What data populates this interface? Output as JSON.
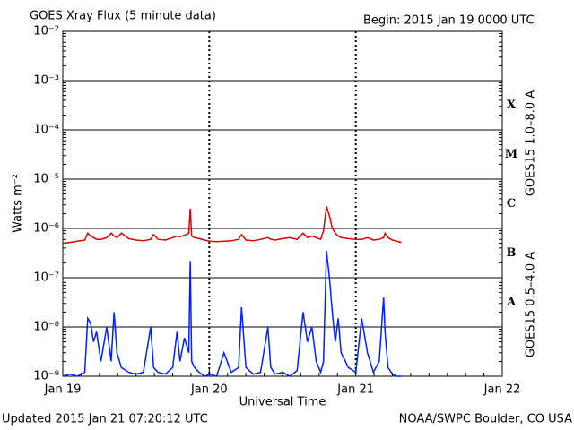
{
  "chart_data": {
    "type": "line",
    "title": "GOES Xray Flux (5 minute data)",
    "subtitle": "Begin:  2015 Jan 19 0000 UTC",
    "ylabel": "Watts m⁻²",
    "xlabel": "Universal Time",
    "footer_left": "Updated 2015 Jan 21 07:20:12 UTC",
    "footer_right": "NOAA/SWPC Boulder, CO USA",
    "log_y": true,
    "grid": true,
    "classes": [
      "A",
      "B",
      "C",
      "M",
      "X"
    ],
    "xlim": [
      0,
      3
    ],
    "xticks": [
      {
        "value": 0,
        "label": "Jan 19"
      },
      {
        "value": 1,
        "label": "Jan 20"
      },
      {
        "value": 2,
        "label": "Jan 21"
      },
      {
        "value": 3,
        "label": "Jan 22"
      }
    ],
    "ylim": [
      1e-09,
      0.01
    ],
    "yticks": [
      {
        "value": 1e-09,
        "label": "10⁻⁹"
      },
      {
        "value": 1e-08,
        "label": "10⁻⁸"
      },
      {
        "value": 1e-07,
        "label": "10⁻⁷"
      },
      {
        "value": 1e-06,
        "label": "10⁻⁶"
      },
      {
        "value": 1e-05,
        "label": "10⁻⁵"
      },
      {
        "value": 0.0001,
        "label": "10⁻⁴"
      },
      {
        "value": 0.001,
        "label": "10⁻³"
      },
      {
        "value": 0.01,
        "label": "10⁻²"
      }
    ],
    "x": [
      0,
      0.05,
      0.1,
      0.15,
      0.17,
      0.19,
      0.21,
      0.23,
      0.26,
      0.3,
      0.33,
      0.35,
      0.37,
      0.4,
      0.45,
      0.5,
      0.55,
      0.6,
      0.62,
      0.65,
      0.7,
      0.75,
      0.78,
      0.8,
      0.83,
      0.86,
      0.87,
      0.88,
      0.9,
      0.93,
      0.97,
      1.0,
      1.05,
      1.1,
      1.15,
      1.2,
      1.22,
      1.25,
      1.3,
      1.35,
      1.4,
      1.42,
      1.45,
      1.5,
      1.55,
      1.6,
      1.64,
      1.67,
      1.7,
      1.73,
      1.76,
      1.78,
      1.8,
      1.82,
      1.84,
      1.86,
      1.88,
      1.9,
      1.95,
      2.0,
      2.04,
      2.08,
      2.12,
      2.16,
      2.19,
      2.2,
      2.22,
      2.25,
      2.28,
      2.31
    ],
    "series": [
      {
        "name": "GOES15 1.0–8.0 A",
        "color": "#e00000",
        "values": [
          5e-07,
          5.2e-07,
          5.5e-07,
          5.8e-07,
          8e-07,
          7e-07,
          6.5e-07,
          6e-07,
          6e-07,
          6.5e-07,
          8e-07,
          7e-07,
          6.5e-07,
          8e-07,
          6.2e-07,
          5.8e-07,
          5.6e-07,
          6e-07,
          7.5e-07,
          6e-07,
          5.8e-07,
          6.5e-07,
          7e-07,
          6.8e-07,
          7.2e-07,
          8e-07,
          2.5e-06,
          7e-07,
          6.5e-07,
          6.2e-07,
          5.8e-07,
          5.5e-07,
          5.4e-07,
          5.5e-07,
          5.6e-07,
          6e-07,
          7.5e-07,
          5.8e-07,
          5.6e-07,
          6e-07,
          6.5e-07,
          6e-07,
          5.8e-07,
          6.2e-07,
          6.5e-07,
          6e-07,
          8e-07,
          6.5e-07,
          7e-07,
          6.5e-07,
          6e-07,
          9e-07,
          2.8e-06,
          1.8e-06,
          1e-06,
          8e-07,
          7e-07,
          6.5e-07,
          6.2e-07,
          6e-07,
          6e-07,
          6.5e-07,
          5.8e-07,
          6e-07,
          6.5e-07,
          8e-07,
          6.5e-07,
          5.8e-07,
          5.5e-07,
          5.2e-07
        ]
      },
      {
        "name": "GOES15 0.5–4.0 A",
        "color": "#0020ff",
        "values": [
          1e-09,
          1.1e-09,
          1e-09,
          1.2e-09,
          1.5e-08,
          1.2e-08,
          5e-09,
          8e-09,
          2e-09,
          1e-08,
          2e-09,
          2e-08,
          3e-09,
          1.5e-09,
          1.2e-09,
          1.1e-09,
          1.2e-09,
          1e-08,
          1.5e-09,
          1.2e-09,
          1.1e-09,
          1.5e-09,
          8e-09,
          2e-09,
          6e-09,
          3e-09,
          2.2e-07,
          2e-09,
          1.5e-09,
          1.2e-09,
          1e-09,
          1.1e-09,
          1e-09,
          3e-09,
          1.2e-09,
          1.5e-09,
          2.5e-08,
          1.5e-09,
          1.1e-09,
          1.2e-09,
          1e-08,
          1.5e-09,
          1.1e-09,
          1.2e-09,
          1e-09,
          1.3e-09,
          2e-08,
          5e-09,
          1e-08,
          2e-09,
          1.2e-09,
          2e-09,
          3.5e-07,
          1e-07,
          2e-08,
          5e-09,
          1.5e-08,
          3e-09,
          1.5e-09,
          1.2e-09,
          1.5e-08,
          3e-09,
          1.2e-09,
          2e-09,
          4e-08,
          8e-09,
          1.5e-09,
          1.1e-09,
          1e-09,
          1e-09
        ]
      }
    ]
  }
}
